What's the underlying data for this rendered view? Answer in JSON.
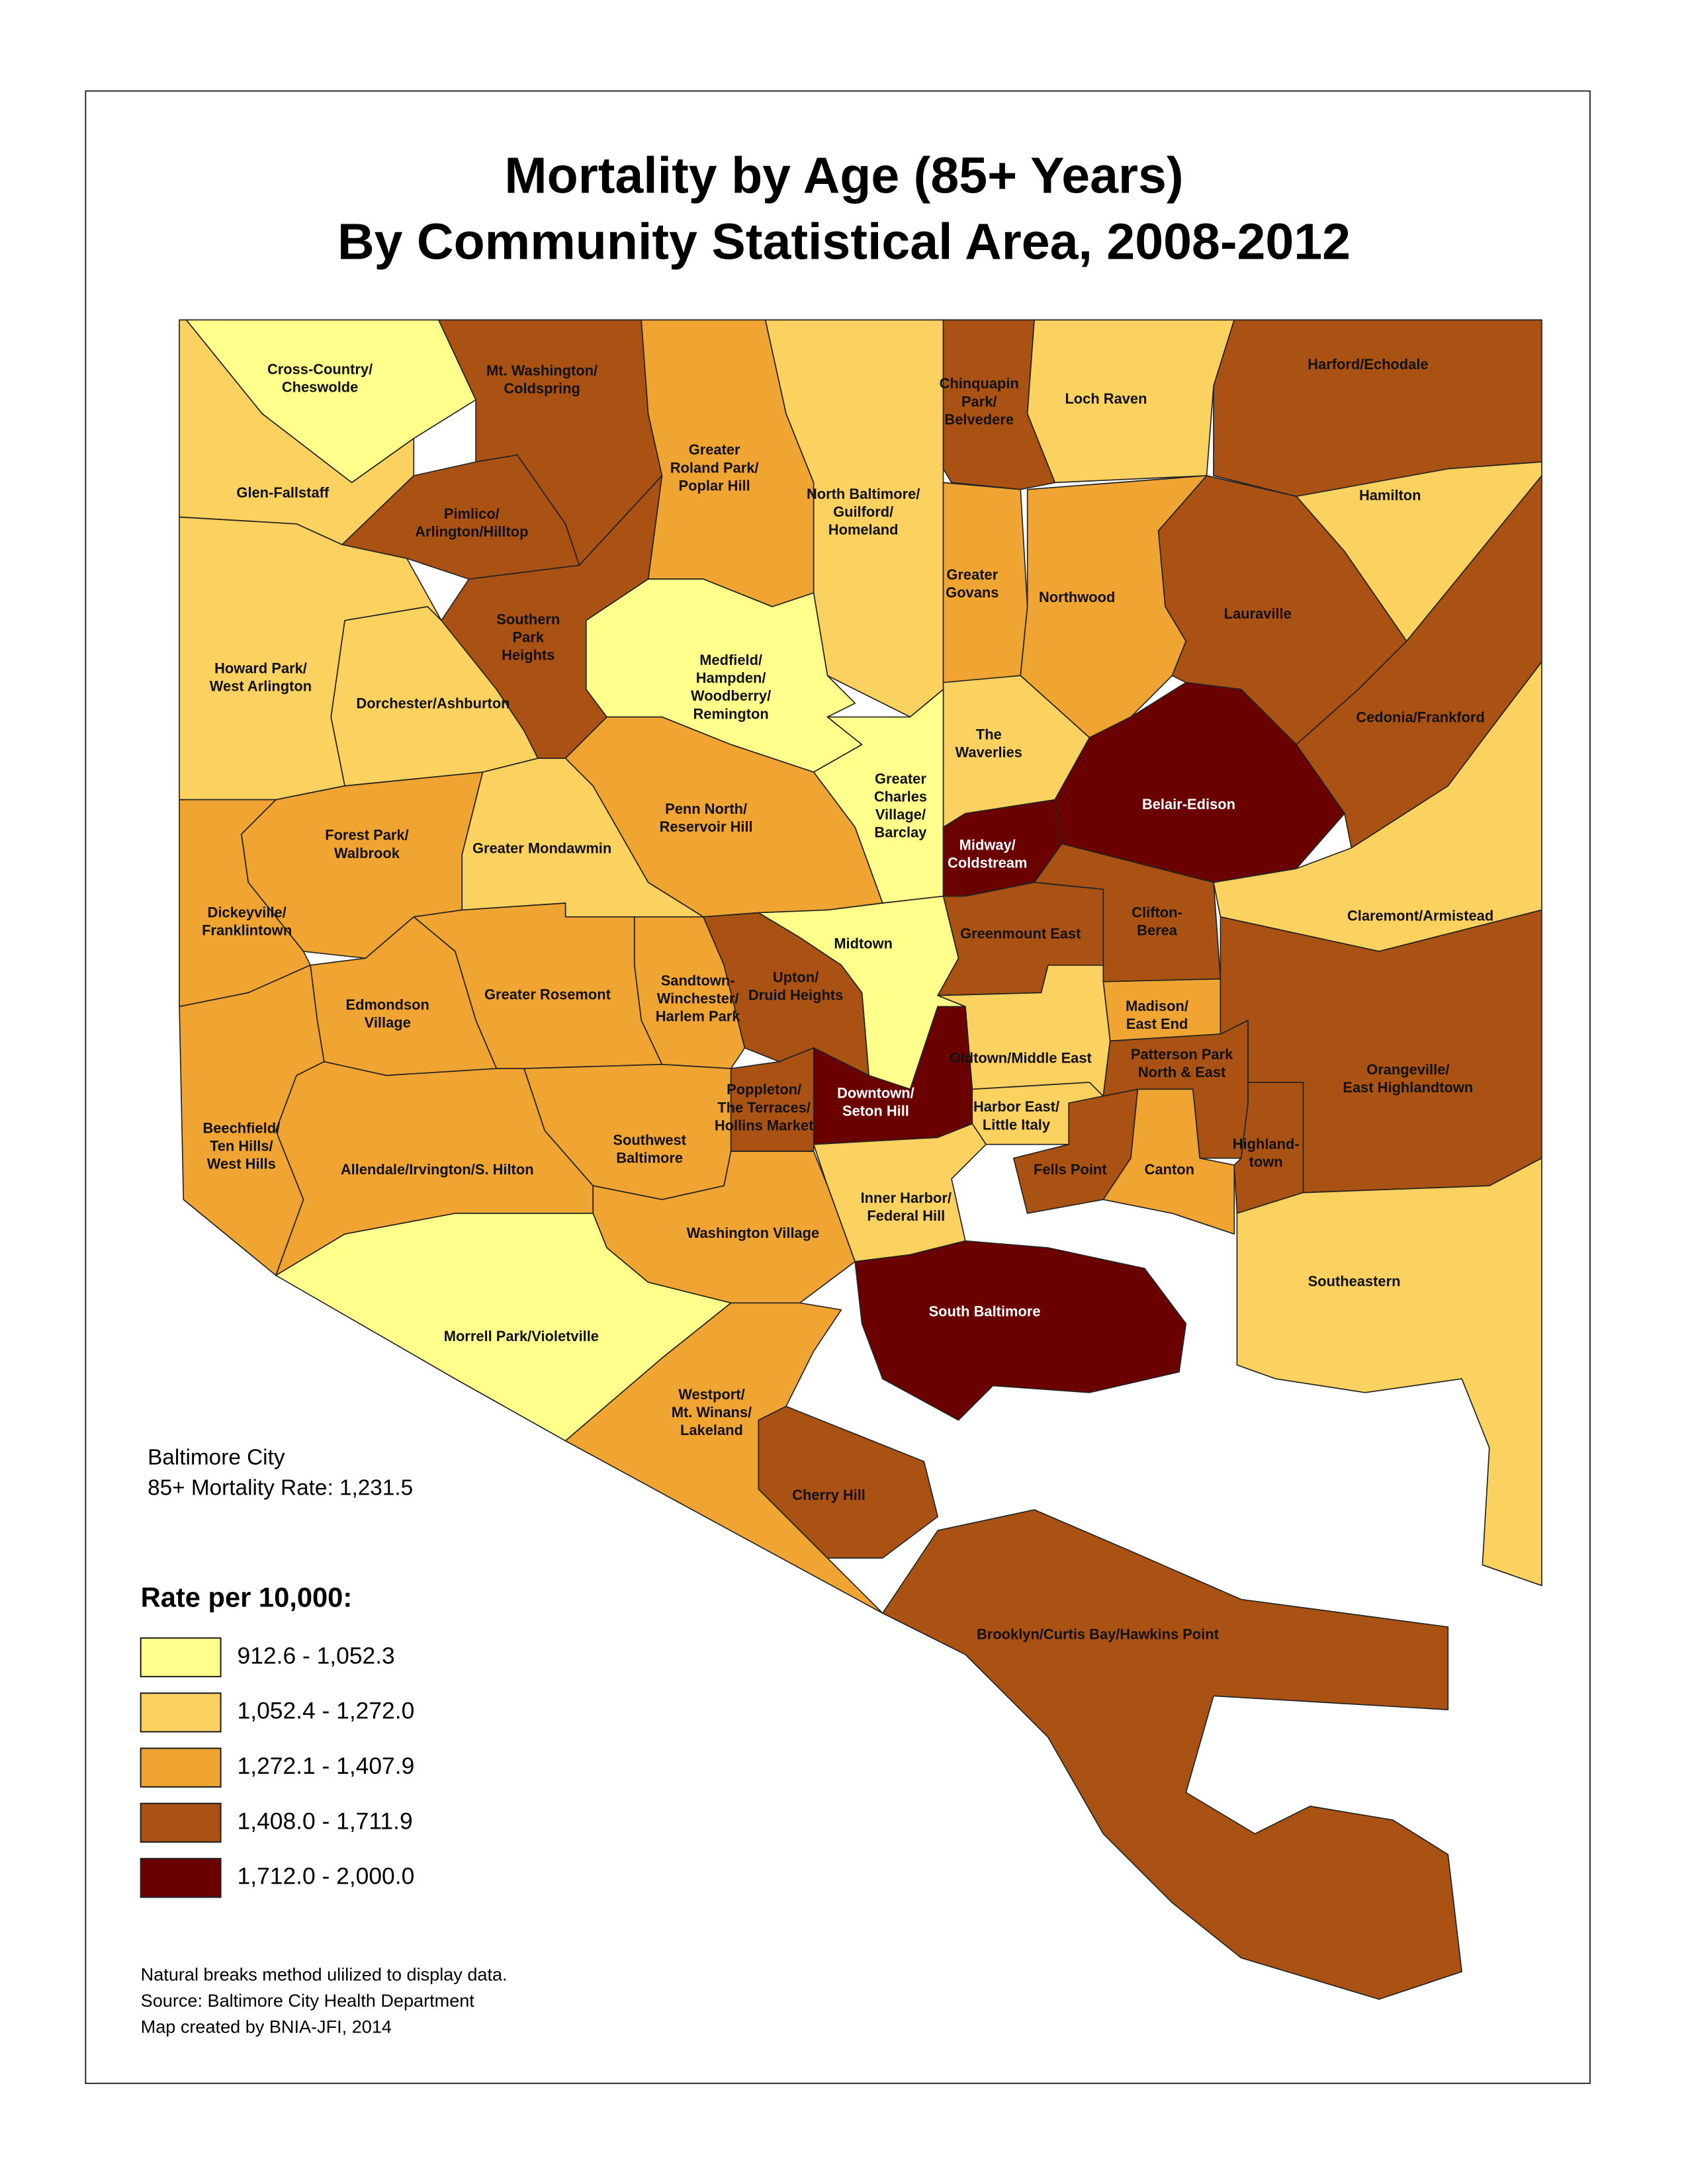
{
  "title": [
    "Mortality by Age (85+ Years)",
    "By Community Statistical Area, 2008-2012"
  ],
  "city_summary": [
    "Baltimore City",
    "85+ Mortality Rate: 1,231.5"
  ],
  "legend": {
    "title": "Rate per 10,000:",
    "items": [
      {
        "label": "912.6 - 1,052.3",
        "color": "#ffff8c"
      },
      {
        "label": "1,052.4 - 1,272.0",
        "color": "#fbd15f"
      },
      {
        "label": "1,272.1 - 1,407.9",
        "color": "#f0a431"
      },
      {
        "label": "1,408.0 - 1,711.9",
        "color": "#a95214"
      },
      {
        "label": "1,712.0 - 2,000.0",
        "color": "#6b0000"
      }
    ]
  },
  "notes": [
    "Natural breaks method ulilized to display data.",
    "Source: Baltimore City Health Department",
    "Map created by BNIA-JFI, 2014"
  ],
  "regions": [
    {
      "label": [
        "Cross-Country/",
        "Cheswolde"
      ],
      "color": "#ffff8c"
    },
    {
      "label": [
        "Mt. Washington/",
        "Coldspring"
      ],
      "color": "#a95214"
    },
    {
      "label": [
        "Greater",
        "Roland Park/",
        "Poplar Hill"
      ],
      "color": "#f0a431"
    },
    {
      "label": [
        "North Baltimore/",
        "Guilford/",
        "Homeland"
      ],
      "color": "#fbd15f"
    },
    {
      "label": [
        "Chinquapin",
        "Park/",
        "Belvedere"
      ],
      "color": "#a95214"
    },
    {
      "label": [
        "Loch Raven"
      ],
      "color": "#fbd15f"
    },
    {
      "label": [
        "Harford/Echodale"
      ],
      "color": "#a95214"
    },
    {
      "label": [
        "Glen-Fallstaff"
      ],
      "color": "#fbd15f"
    },
    {
      "label": [
        "Pimlico/",
        "Arlington/Hilltop"
      ],
      "color": "#a95214"
    },
    {
      "label": [
        "Hamilton"
      ],
      "color": "#fbd15f"
    },
    {
      "label": [
        "Greater",
        "Govans"
      ],
      "color": "#f0a431"
    },
    {
      "label": [
        "Northwood"
      ],
      "color": "#f0a431"
    },
    {
      "label": [
        "Lauraville"
      ],
      "color": "#a95214"
    },
    {
      "label": [
        "Southern",
        "Park",
        "Heights"
      ],
      "color": "#a95214"
    },
    {
      "label": [
        "Medfield/",
        "Hampden/",
        "Woodberry/",
        "Remington"
      ],
      "color": "#ffff8c"
    },
    {
      "label": [
        "Howard Park/",
        "West Arlington"
      ],
      "color": "#fbd15f"
    },
    {
      "label": [
        "Dorchester/Ashburton"
      ],
      "color": "#fbd15f"
    },
    {
      "label": [
        "Cedonia/Frankford"
      ],
      "color": "#a95214"
    },
    {
      "label": [
        "The",
        "Waverlies"
      ],
      "color": "#fbd15f"
    },
    {
      "label": [
        "Greater",
        "Charles",
        "Village/",
        "Barclay"
      ],
      "color": "#ffff8c"
    },
    {
      "label": [
        "Belair-Edison"
      ],
      "color": "#6b0000"
    },
    {
      "label": [
        "Penn North/",
        "Reservoir Hill"
      ],
      "color": "#f0a431"
    },
    {
      "label": [
        "Forest Park/",
        "Walbrook"
      ],
      "color": "#f0a431"
    },
    {
      "label": [
        "Greater Mondawmin"
      ],
      "color": "#fbd15f"
    },
    {
      "label": [
        "Midway/",
        "Coldstream"
      ],
      "color": "#6b0000"
    },
    {
      "label": [
        "Dickeyville/",
        "Franklintown"
      ],
      "color": "#f0a431"
    },
    {
      "label": [
        "Clifton-",
        "Berea"
      ],
      "color": "#a95214"
    },
    {
      "label": [
        "Claremont/Armistead"
      ],
      "color": "#fbd15f"
    },
    {
      "label": [
        "Greenmount East"
      ],
      "color": "#a95214"
    },
    {
      "label": [
        "Midtown"
      ],
      "color": "#ffff8c"
    },
    {
      "label": [
        "Sandtown-",
        "Winchester/",
        "Harlem Park"
      ],
      "color": "#f0a431"
    },
    {
      "label": [
        "Upton/",
        "Druid Heights"
      ],
      "color": "#a95214"
    },
    {
      "label": [
        "Greater Rosemont"
      ],
      "color": "#f0a431"
    },
    {
      "label": [
        "Edmondson",
        "Village"
      ],
      "color": "#f0a431"
    },
    {
      "label": [
        "Madison/",
        "East End"
      ],
      "color": "#f0a431"
    },
    {
      "label": [
        "Oldtown/Middle East"
      ],
      "color": "#fbd15f"
    },
    {
      "label": [
        "Patterson Park",
        "North & East"
      ],
      "color": "#a95214"
    },
    {
      "label": [
        "Orangeville/",
        "East Highlandtown"
      ],
      "color": "#a95214"
    },
    {
      "label": [
        "Downtown/",
        "Seton Hill"
      ],
      "color": "#6b0000"
    },
    {
      "label": [
        "Poppleton/",
        "The Terraces/",
        "Hollins Market"
      ],
      "color": "#a95214"
    },
    {
      "label": [
        "Harbor East/",
        "Little Italy"
      ],
      "color": "#fbd15f"
    },
    {
      "label": [
        "Beechfield/",
        "Ten Hills/",
        "West Hills"
      ],
      "color": "#f0a431"
    },
    {
      "label": [
        "Allendale/Irvington/S. Hilton"
      ],
      "color": "#f0a431"
    },
    {
      "label": [
        "Southwest",
        "Baltimore"
      ],
      "color": "#f0a431"
    },
    {
      "label": [
        "Fells Point"
      ],
      "color": "#a95214"
    },
    {
      "label": [
        "Canton"
      ],
      "color": "#f0a431"
    },
    {
      "label": [
        "Highland-",
        "town"
      ],
      "color": "#a95214"
    },
    {
      "label": [
        "Inner Harbor/",
        "Federal Hill"
      ],
      "color": "#fbd15f"
    },
    {
      "label": [
        "Washington Village"
      ],
      "color": "#f0a431"
    },
    {
      "label": [
        "Southeastern"
      ],
      "color": "#fbd15f"
    },
    {
      "label": [
        "South Baltimore"
      ],
      "color": "#6b0000"
    },
    {
      "label": [
        "Morrell Park/Violetville"
      ],
      "color": "#ffff8c"
    },
    {
      "label": [
        "Westport/",
        "Mt. Winans/",
        "Lakeland"
      ],
      "color": "#f0a431"
    },
    {
      "label": [
        "Cherry Hill"
      ],
      "color": "#a95214"
    },
    {
      "label": [
        "Brooklyn/Curtis Bay/Hawkins Point"
      ],
      "color": "#a95214"
    }
  ]
}
